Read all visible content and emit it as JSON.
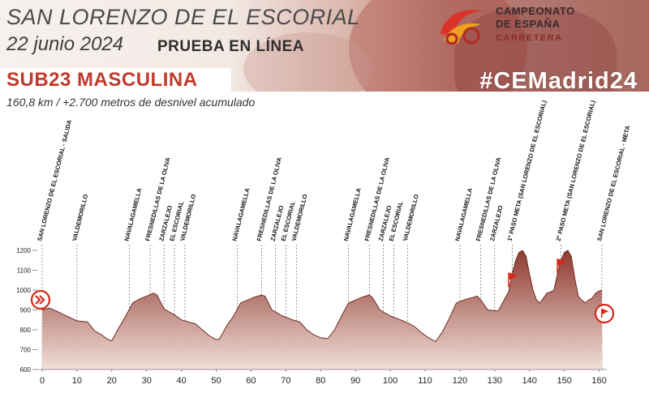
{
  "header": {
    "title": "SAN LORENZO DE EL ESCORIAL",
    "date": "22 junio 2024",
    "race_type": "PRUEBA EN LÍNEA",
    "category": "SUB23 MASCULINA",
    "hashtag": "#CEMadrid24",
    "subtitle": "160,8 km / +2.700 metros de desnivel acumulado"
  },
  "logo": {
    "line1": "CAMPEONATO",
    "line2": "DE ESPAÑA",
    "line3": "CARRETERA",
    "emblem_icon": "campeonato-emblem-icon"
  },
  "colors": {
    "accent": "#c0392b",
    "profile_top": "#8e3a30",
    "profile_bottom": "#f1dfd8",
    "marker": "#d62718"
  },
  "chart_data": {
    "type": "area",
    "title": "",
    "xlabel": "",
    "ylabel": "",
    "xlim": [
      0,
      160.8
    ],
    "ylim": [
      600,
      1250
    ],
    "xticks": [
      0,
      10,
      20,
      30,
      40,
      50,
      60,
      70,
      80,
      90,
      100,
      110,
      120,
      130,
      140,
      150,
      160
    ],
    "yticks": [
      600,
      700,
      800,
      900,
      1000,
      1100,
      1200
    ],
    "grid": false,
    "profile": {
      "x": [
        0,
        2,
        4,
        7,
        10,
        13,
        15,
        17,
        19,
        20,
        22,
        24,
        26,
        28,
        30,
        32,
        33,
        35,
        38,
        40,
        42,
        44,
        46,
        48,
        50,
        51,
        53,
        55,
        57,
        59,
        61,
        63,
        64,
        66,
        69,
        72,
        74,
        76,
        78,
        80,
        82,
        84,
        86,
        88,
        90,
        92,
        94,
        95,
        97,
        100,
        103,
        105,
        107,
        109,
        111,
        113,
        115,
        117,
        119,
        121,
        123,
        125,
        126,
        128,
        131,
        133,
        134,
        135,
        136,
        137,
        138,
        139,
        140,
        141,
        142,
        143,
        144,
        145,
        146,
        147,
        148,
        149,
        150,
        151,
        152,
        153,
        154,
        155,
        156,
        157,
        158,
        159,
        160,
        160.8
      ],
      "y": [
        900,
        910,
        895,
        870,
        845,
        840,
        795,
        775,
        750,
        745,
        810,
        870,
        935,
        955,
        970,
        985,
        975,
        905,
        875,
        850,
        840,
        830,
        800,
        770,
        750,
        755,
        820,
        870,
        935,
        950,
        965,
        975,
        970,
        900,
        870,
        850,
        840,
        800,
        775,
        760,
        755,
        800,
        870,
        935,
        950,
        965,
        975,
        960,
        900,
        870,
        850,
        835,
        815,
        785,
        760,
        740,
        790,
        860,
        935,
        950,
        960,
        970,
        950,
        900,
        895,
        960,
        990,
        1080,
        1150,
        1190,
        1200,
        1170,
        1080,
        1000,
        950,
        935,
        960,
        985,
        990,
        1000,
        1080,
        1150,
        1190,
        1200,
        1170,
        1060,
        970,
        950,
        935,
        950,
        960,
        985,
        995,
        1000
      ]
    },
    "waypoints": [
      {
        "km": 0,
        "name": "SAN LORENZO DE EL ESCORIAL - SALIDA"
      },
      {
        "km": 10,
        "name": "VALDEMORILLO"
      },
      {
        "km": 25,
        "name": "NAVALAGAMELLA"
      },
      {
        "km": 31,
        "name": "FRESNEDILLAS DE LA OLIVA"
      },
      {
        "km": 35,
        "name": "ZARZALEJO"
      },
      {
        "km": 38,
        "name": "EL ESCORIAL"
      },
      {
        "km": 41,
        "name": "VALDEMORILLO"
      },
      {
        "km": 56,
        "name": "NAVALAGAMELLA"
      },
      {
        "km": 63,
        "name": "FRESNEDILLAS DE LA OLIVA"
      },
      {
        "km": 67,
        "name": "ZARZALEJO"
      },
      {
        "km": 70,
        "name": "EL ESCORIAL"
      },
      {
        "km": 73,
        "name": "VALDEMORILLO"
      },
      {
        "km": 88,
        "name": "NAVALAGAMELLA"
      },
      {
        "km": 94,
        "name": "FRESNEDILLAS DE LA OLIVA"
      },
      {
        "km": 98,
        "name": "ZARZALEJO"
      },
      {
        "km": 101,
        "name": "EL ESCORIAL"
      },
      {
        "km": 105,
        "name": "VALDEMORILLO"
      },
      {
        "km": 120,
        "name": "NAVALAGAMELLA"
      },
      {
        "km": 126,
        "name": "FRESNEDILLAS DE LA OLIVA"
      },
      {
        "km": 130,
        "name": "ZARZALEJO"
      },
      {
        "km": 135,
        "name": "1º PASO META (SAN LORENZO DE EL ESCORIAL)"
      },
      {
        "km": 149,
        "name": "2º PASO META (SAN LORENZO DE EL ESCORIAL)"
      },
      {
        "km": 161,
        "name": "SAN LORENZO DE EL ESCORIAL - META"
      }
    ],
    "flags_km": [
      135,
      149
    ],
    "start_marker_km": 0,
    "finish_marker_km": 160.8
  }
}
